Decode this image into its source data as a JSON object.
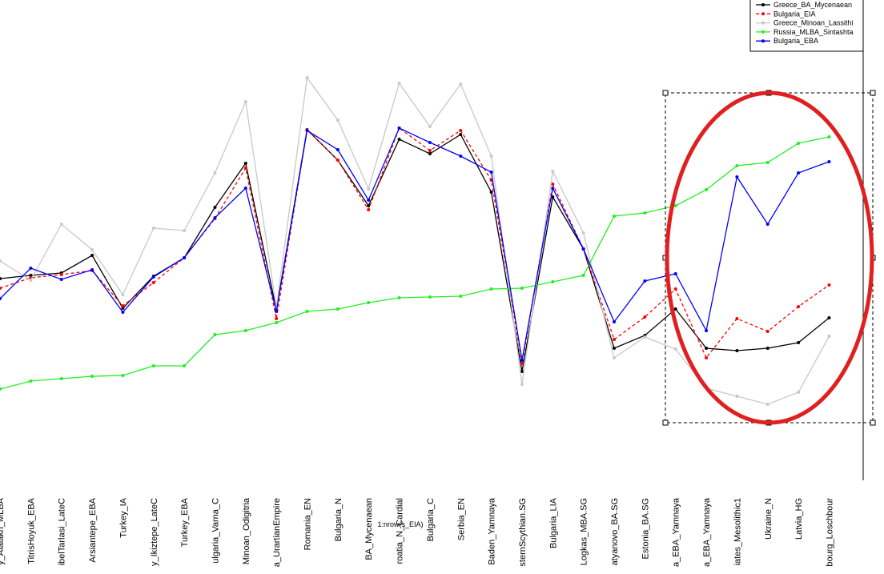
{
  "chart_data": {
    "type": "line",
    "annotation": "1:nrow(s_EIA)",
    "categories": [
      "y_Alalakh_MLBA",
      "TitrisHoyuk_EBA",
      "ibelTarlasi_LateC",
      "Arsiantepe_EBA",
      "Turkey_IA",
      "y_Ikiztepe_LateC",
      "Turkey_EBA",
      "ulgaria_Varna_C",
      "Minoan_Odigitria",
      "a_UrartianEmpire",
      "Romania_EN",
      "Bulgaria_N",
      "BA_Mycenaean",
      "roatia_N_Cardial",
      "Bulgaria_C",
      "Serbia_EN",
      "Baden_Yamnaya",
      "sternScythian.SG",
      "Bulgaria_LIA",
      "Logkas_MBA.SG",
      "atyanovo_BA.SG",
      "Estonia_BA.SG",
      "a_EBA_Yamnaya",
      "a_EBA_Yamnaya",
      "iates_Mesolithic1",
      "Ukraine_N",
      "Latvia_HG",
      "bourg_Loschbour"
    ],
    "series": [
      {
        "name": "Greece_BA_Mycenaean",
        "color": "#000000",
        "values": [
          54.4,
          55.2,
          55.8,
          60.2,
          47,
          55,
          59.6,
          72.2,
          83.2,
          46.6,
          91.6,
          84,
          72.6,
          89.2,
          85.6,
          90.4,
          76,
          31.2,
          74.8,
          61.8,
          37,
          40.2,
          46.8,
          37,
          36.4,
          37,
          38.4,
          44.6
        ]
      },
      {
        "name": "Bulgaria_EIA",
        "color": "#ff0000",
        "dash": "4,3",
        "values": [
          52,
          54.6,
          55.4,
          56.4,
          47.6,
          53.4,
          59.6,
          69.4,
          82,
          44.4,
          91.6,
          84,
          71.6,
          92,
          86.4,
          91.4,
          79,
          33.2,
          78,
          61.8,
          39.2,
          44.8,
          51.8,
          34.6,
          44.4,
          41.2,
          47.4,
          52.8
        ]
      },
      {
        "name": "Greece_Minoan_Lassithi",
        "color": "#c8c8c8",
        "values": [
          58.8,
          54,
          68,
          61.6,
          50.4,
          67,
          66.4,
          80.8,
          98.6,
          47.2,
          104.6,
          94,
          76.8,
          103.2,
          92.4,
          103,
          85,
          28,
          81.2,
          65.8,
          34.6,
          39.8,
          36.8,
          27,
          25,
          23,
          26,
          40
        ]
      },
      {
        "name": "Russia_MLBA_Sintashta",
        "color": "#22ee22",
        "values": [
          26.8,
          28.8,
          29.4,
          30,
          30.2,
          32.6,
          32.6,
          40.4,
          41.4,
          43.4,
          46.2,
          46.8,
          48.4,
          49.6,
          49.8,
          50,
          51.8,
          52,
          53.6,
          55.2,
          70,
          70.8,
          72.6,
          76.6,
          82.6,
          83.4,
          88.2,
          89.8
        ]
      },
      {
        "name": "Bulgaria_EBA",
        "color": "#0000ff",
        "values": [
          49.4,
          57,
          54.2,
          56.6,
          46,
          54.8,
          59.6,
          69.6,
          77,
          46.2,
          91.4,
          86.6,
          74,
          92,
          88.4,
          85,
          81,
          34,
          77,
          61.8,
          43.6,
          53.8,
          55.6,
          41.4,
          79.8,
          68,
          80.8,
          83.6
        ]
      }
    ],
    "ylim": [
      0,
      124
    ],
    "legend": "topright"
  }
}
